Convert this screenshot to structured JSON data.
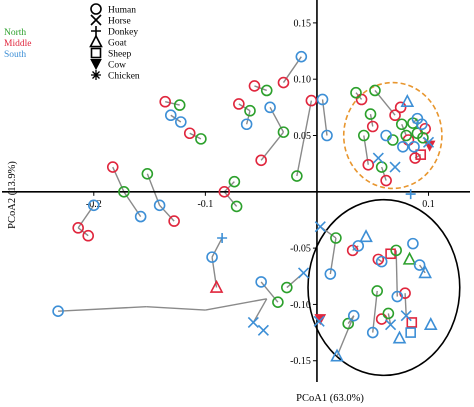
{
  "chart_data": {
    "type": "scatter",
    "xlabel": "PCoA1 (63.0%)",
    "ylabel": "PCoA2 (13.9%)",
    "xlim": [
      -0.25,
      0.13
    ],
    "ylim": [
      -0.16,
      0.165
    ],
    "x_ticks": [
      "-0.2",
      "-0.1",
      "0.1"
    ],
    "y_ticks": [
      "0.15",
      "0.10",
      "0.05",
      "-0.05",
      "-0.10",
      "-0.15"
    ],
    "regions": [
      {
        "name": "North",
        "color": "#2ca02c"
      },
      {
        "name": "Middle",
        "color": "#e0263d"
      },
      {
        "name": "South",
        "color": "#3d8fd6"
      }
    ],
    "species": [
      {
        "name": "Human",
        "marker": "circle"
      },
      {
        "name": "Horse",
        "marker": "x"
      },
      {
        "name": "Donkey",
        "marker": "plus"
      },
      {
        "name": "Goat",
        "marker": "triangle"
      },
      {
        "name": "Sheep",
        "marker": "square"
      },
      {
        "name": "Cow",
        "marker": "triangle-down-filled"
      },
      {
        "name": "Chicken",
        "marker": "asterisk"
      }
    ],
    "series": [
      {
        "name": "Middle",
        "color": "#e0263d",
        "points": [
          {
            "x": -0.214,
            "y": -0.032,
            "s": "circle"
          },
          {
            "x": -0.205,
            "y": -0.039,
            "s": "circle"
          },
          {
            "x": -0.183,
            "y": 0.022,
            "s": "circle"
          },
          {
            "x": -0.136,
            "y": 0.08,
            "s": "circle"
          },
          {
            "x": -0.128,
            "y": -0.026,
            "s": "circle"
          },
          {
            "x": -0.114,
            "y": 0.052,
            "s": "circle"
          },
          {
            "x": -0.09,
            "y": -0.085,
            "s": "triangle"
          },
          {
            "x": -0.083,
            "y": 0.0,
            "s": "circle"
          },
          {
            "x": -0.07,
            "y": 0.078,
            "s": "circle"
          },
          {
            "x": -0.056,
            "y": 0.094,
            "s": "circle"
          },
          {
            "x": -0.05,
            "y": 0.028,
            "s": "circle"
          },
          {
            "x": -0.03,
            "y": 0.097,
            "s": "circle"
          },
          {
            "x": -0.005,
            "y": 0.081,
            "s": "circle"
          },
          {
            "x": 0.003,
            "y": -0.113,
            "s": "triangle-down-filled"
          },
          {
            "x": 0.032,
            "y": -0.052,
            "s": "circle"
          },
          {
            "x": 0.04,
            "y": 0.082,
            "s": "circle"
          },
          {
            "x": 0.046,
            "y": 0.024,
            "s": "circle"
          },
          {
            "x": 0.05,
            "y": 0.058,
            "s": "circle"
          },
          {
            "x": 0.055,
            "y": -0.06,
            "s": "circle"
          },
          {
            "x": 0.058,
            "y": -0.113,
            "s": "circle"
          },
          {
            "x": 0.062,
            "y": 0.01,
            "s": "circle"
          },
          {
            "x": 0.066,
            "y": -0.055,
            "s": "square"
          },
          {
            "x": 0.07,
            "y": 0.068,
            "s": "circle"
          },
          {
            "x": 0.075,
            "y": 0.075,
            "s": "circle"
          },
          {
            "x": 0.079,
            "y": -0.09,
            "s": "circle"
          },
          {
            "x": 0.082,
            "y": 0.046,
            "s": "circle"
          },
          {
            "x": 0.085,
            "y": -0.116,
            "s": "square"
          },
          {
            "x": 0.088,
            "y": 0.03,
            "s": "circle"
          },
          {
            "x": 0.093,
            "y": 0.033,
            "s": "square"
          },
          {
            "x": 0.097,
            "y": 0.056,
            "s": "circle"
          },
          {
            "x": 0.101,
            "y": 0.041,
            "s": "triangle-down-filled"
          }
        ]
      },
      {
        "name": "North",
        "color": "#2ca02c",
        "points": [
          {
            "x": -0.173,
            "y": 0.0,
            "s": "circle"
          },
          {
            "x": -0.152,
            "y": 0.016,
            "s": "circle"
          },
          {
            "x": -0.123,
            "y": 0.077,
            "s": "circle"
          },
          {
            "x": -0.104,
            "y": 0.047,
            "s": "circle"
          },
          {
            "x": -0.074,
            "y": 0.009,
            "s": "circle"
          },
          {
            "x": -0.072,
            "y": -0.013,
            "s": "circle"
          },
          {
            "x": -0.06,
            "y": 0.072,
            "s": "circle"
          },
          {
            "x": -0.045,
            "y": 0.09,
            "s": "circle"
          },
          {
            "x": -0.035,
            "y": -0.098,
            "s": "circle"
          },
          {
            "x": -0.03,
            "y": 0.053,
            "s": "circle"
          },
          {
            "x": -0.027,
            "y": -0.085,
            "s": "circle"
          },
          {
            "x": -0.018,
            "y": 0.014,
            "s": "circle"
          },
          {
            "x": 0.017,
            "y": -0.041,
            "s": "circle"
          },
          {
            "x": 0.028,
            "y": -0.117,
            "s": "circle"
          },
          {
            "x": 0.035,
            "y": 0.088,
            "s": "circle"
          },
          {
            "x": 0.042,
            "y": 0.05,
            "s": "circle"
          },
          {
            "x": 0.048,
            "y": 0.069,
            "s": "circle"
          },
          {
            "x": 0.052,
            "y": 0.09,
            "s": "circle"
          },
          {
            "x": 0.054,
            "y": -0.088,
            "s": "circle"
          },
          {
            "x": 0.058,
            "y": 0.022,
            "s": "circle"
          },
          {
            "x": 0.064,
            "y": -0.108,
            "s": "circle"
          },
          {
            "x": 0.068,
            "y": 0.046,
            "s": "circle"
          },
          {
            "x": 0.071,
            "y": -0.052,
            "s": "circle"
          },
          {
            "x": 0.076,
            "y": 0.06,
            "s": "circle"
          },
          {
            "x": 0.08,
            "y": 0.05,
            "s": "circle"
          },
          {
            "x": 0.083,
            "y": -0.06,
            "s": "triangle"
          },
          {
            "x": 0.086,
            "y": 0.061,
            "s": "circle"
          },
          {
            "x": 0.09,
            "y": 0.052,
            "s": "circle"
          },
          {
            "x": 0.095,
            "y": 0.048,
            "s": "circle"
          }
        ]
      },
      {
        "name": "South",
        "color": "#3d8fd6",
        "points": [
          {
            "x": -0.232,
            "y": -0.106,
            "s": "circle"
          },
          {
            "x": -0.2,
            "y": -0.012,
            "s": "circle"
          },
          {
            "x": -0.158,
            "y": -0.022,
            "s": "circle"
          },
          {
            "x": -0.141,
            "y": -0.012,
            "s": "circle"
          },
          {
            "x": -0.131,
            "y": 0.068,
            "s": "circle"
          },
          {
            "x": -0.122,
            "y": 0.062,
            "s": "circle"
          },
          {
            "x": -0.094,
            "y": -0.058,
            "s": "circle"
          },
          {
            "x": -0.085,
            "y": -0.041,
            "s": "plus"
          },
          {
            "x": -0.063,
            "y": 0.06,
            "s": "circle"
          },
          {
            "x": -0.057,
            "y": -0.116,
            "s": "x"
          },
          {
            "x": -0.05,
            "y": -0.08,
            "s": "circle"
          },
          {
            "x": -0.042,
            "y": 0.075,
            "s": "circle"
          },
          {
            "x": -0.048,
            "y": -0.123,
            "s": "x"
          },
          {
            "x": -0.014,
            "y": 0.12,
            "s": "circle"
          },
          {
            "x": -0.012,
            "y": -0.072,
            "s": "x"
          },
          {
            "x": 0.003,
            "y": -0.031,
            "s": "x"
          },
          {
            "x": 0.002,
            "y": -0.115,
            "s": "x"
          },
          {
            "x": 0.005,
            "y": 0.082,
            "s": "circle"
          },
          {
            "x": 0.009,
            "y": 0.05,
            "s": "circle"
          },
          {
            "x": 0.012,
            "y": -0.073,
            "s": "circle"
          },
          {
            "x": 0.018,
            "y": -0.146,
            "s": "triangle"
          },
          {
            "x": 0.033,
            "y": -0.11,
            "s": "circle"
          },
          {
            "x": 0.037,
            "y": -0.048,
            "s": "circle"
          },
          {
            "x": 0.044,
            "y": -0.04,
            "s": "triangle"
          },
          {
            "x": 0.05,
            "y": -0.125,
            "s": "circle"
          },
          {
            "x": 0.055,
            "y": 0.03,
            "s": "x"
          },
          {
            "x": 0.058,
            "y": -0.062,
            "s": "circle"
          },
          {
            "x": 0.062,
            "y": 0.05,
            "s": "circle"
          },
          {
            "x": 0.066,
            "y": -0.118,
            "s": "x"
          },
          {
            "x": 0.07,
            "y": 0.022,
            "s": "x"
          },
          {
            "x": 0.072,
            "y": -0.093,
            "s": "circle"
          },
          {
            "x": 0.074,
            "y": -0.13,
            "s": "triangle"
          },
          {
            "x": 0.077,
            "y": 0.04,
            "s": "circle"
          },
          {
            "x": 0.08,
            "y": -0.11,
            "s": "x"
          },
          {
            "x": 0.081,
            "y": 0.08,
            "s": "triangle"
          },
          {
            "x": 0.084,
            "y": -0.125,
            "s": "square"
          },
          {
            "x": 0.086,
            "y": -0.046,
            "s": "circle"
          },
          {
            "x": 0.087,
            "y": 0.04,
            "s": "circle"
          },
          {
            "x": 0.09,
            "y": 0.065,
            "s": "circle"
          },
          {
            "x": 0.092,
            "y": -0.065,
            "s": "circle"
          },
          {
            "x": 0.094,
            "y": 0.06,
            "s": "circle"
          },
          {
            "x": 0.097,
            "y": -0.072,
            "s": "triangle"
          },
          {
            "x": 0.1,
            "y": 0.044,
            "s": "x"
          },
          {
            "x": 0.102,
            "y": -0.118,
            "s": "triangle"
          },
          {
            "x": 0.084,
            "y": -0.002,
            "s": "plus"
          }
        ]
      }
    ],
    "links": [
      [
        -0.232,
        -0.106,
        -0.153,
        -0.102
      ],
      [
        -0.153,
        -0.102,
        -0.1,
        -0.105
      ],
      [
        -0.1,
        -0.105,
        -0.045,
        -0.095
      ],
      [
        -0.045,
        -0.095,
        -0.057,
        -0.116
      ],
      [
        -0.214,
        -0.032,
        -0.2,
        -0.012
      ],
      [
        -0.205,
        -0.039,
        -0.214,
        -0.032
      ],
      [
        -0.183,
        0.022,
        -0.173,
        0.0
      ],
      [
        -0.173,
        0.0,
        -0.158,
        -0.022
      ],
      [
        -0.152,
        0.016,
        -0.141,
        -0.012
      ],
      [
        -0.136,
        0.08,
        -0.123,
        0.077
      ],
      [
        -0.131,
        0.068,
        -0.122,
        0.062
      ],
      [
        -0.114,
        0.052,
        -0.104,
        0.047
      ],
      [
        -0.128,
        -0.026,
        -0.141,
        -0.012
      ],
      [
        -0.094,
        -0.058,
        -0.085,
        -0.041
      ],
      [
        -0.094,
        -0.058,
        -0.09,
        -0.085
      ],
      [
        -0.083,
        0.0,
        -0.074,
        0.009
      ],
      [
        -0.072,
        -0.013,
        -0.083,
        0.0
      ],
      [
        -0.07,
        0.078,
        -0.06,
        0.072
      ],
      [
        -0.063,
        0.06,
        -0.06,
        0.072
      ],
      [
        -0.056,
        0.094,
        -0.045,
        0.09
      ],
      [
        -0.05,
        0.028,
        -0.03,
        0.053
      ],
      [
        -0.042,
        0.075,
        -0.03,
        0.053
      ],
      [
        -0.035,
        -0.098,
        -0.05,
        -0.08
      ],
      [
        -0.027,
        -0.085,
        -0.012,
        -0.072
      ],
      [
        -0.03,
        0.097,
        -0.014,
        0.12
      ],
      [
        -0.018,
        0.014,
        -0.005,
        0.081
      ],
      [
        0.005,
        0.082,
        0.009,
        0.05
      ],
      [
        0.003,
        -0.031,
        0.017,
        -0.041
      ],
      [
        0.012,
        -0.073,
        0.017,
        -0.041
      ],
      [
        0.018,
        -0.146,
        0.033,
        -0.11
      ],
      [
        0.028,
        -0.117,
        0.033,
        -0.11
      ],
      [
        0.032,
        -0.052,
        0.037,
        -0.048
      ],
      [
        0.035,
        0.088,
        0.04,
        0.082
      ],
      [
        0.042,
        0.05,
        0.046,
        0.024
      ],
      [
        0.048,
        0.069,
        0.05,
        0.058
      ],
      [
        0.052,
        0.09,
        0.07,
        0.068
      ],
      [
        0.055,
        -0.06,
        0.058,
        -0.062
      ],
      [
        0.054,
        -0.088,
        0.05,
        -0.125
      ],
      [
        0.062,
        0.01,
        0.058,
        0.022
      ],
      [
        0.064,
        -0.108,
        0.066,
        -0.118
      ],
      [
        0.071,
        -0.052,
        0.072,
        -0.093
      ],
      [
        0.076,
        0.06,
        0.08,
        0.05
      ],
      [
        0.079,
        -0.09,
        0.08,
        -0.11
      ],
      [
        0.086,
        0.061,
        0.09,
        0.065
      ],
      [
        0.088,
        0.03,
        0.093,
        0.033
      ],
      [
        0.092,
        -0.065,
        0.097,
        -0.072
      ],
      [
        0.095,
        0.048,
        0.1,
        0.044
      ]
    ],
    "ellipses": [
      {
        "color": "#e8962e",
        "dashed": true,
        "cx": 0.068,
        "cy": 0.05,
        "rx": 0.044,
        "ry": 0.047
      },
      {
        "color": "#000000",
        "dashed": false,
        "cx": 0.06,
        "cy": -0.085,
        "rx": 0.068,
        "ry": 0.078
      }
    ]
  }
}
